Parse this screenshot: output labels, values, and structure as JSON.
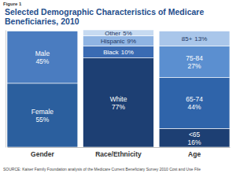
{
  "chart_data": {
    "type": "bar",
    "title": "Selected Demographic Characteristics of Medicare Beneficiaries, 2010",
    "annotations": [
      "Figure 1",
      "SOURCE: Kaiser Family Foundation analysis of the Medicare Current Beneficiary Survey 2010 Cost and Use File"
    ],
    "categories": [
      "Gender",
      "Race/Ethnicity",
      "Age"
    ],
    "stacked": true,
    "data_labels": true,
    "tick_labels": "x",
    "ylim": [
      0,
      101
    ],
    "series": [
      {
        "name": "Female",
        "color": "#2b5f9e",
        "values": [
          55,
          null,
          null
        ],
        "value_labels": [
          "55%",
          null,
          null
        ]
      },
      {
        "name": "Male",
        "color": "#4a7cc0",
        "values": [
          45,
          null,
          null
        ],
        "value_labels": [
          "45%",
          null,
          null
        ]
      },
      {
        "name": "White",
        "color": "#1d3f73",
        "values": [
          null,
          77,
          null
        ],
        "value_labels": [
          null,
          "77%",
          null
        ]
      },
      {
        "name": "Black",
        "color": "#3a6bb3",
        "values": [
          null,
          10,
          null
        ],
        "value_labels": [
          null,
          "10%",
          null
        ]
      },
      {
        "name": "Hispanic",
        "color": "#8fb4e3",
        "values": [
          null,
          9,
          null
        ],
        "value_labels": [
          null,
          "9%",
          null
        ]
      },
      {
        "name": "Other",
        "color": "#c6daf1",
        "values": [
          null,
          5,
          null
        ],
        "value_labels": [
          null,
          "5%",
          null
        ]
      },
      {
        "name": "<65",
        "color": "#1d3f73",
        "values": [
          null,
          null,
          16
        ],
        "value_labels": [
          null,
          null,
          "16%"
        ]
      },
      {
        "name": "65-74",
        "color": "#2f64aa",
        "values": [
          null,
          null,
          44
        ],
        "value_labels": [
          null,
          null,
          "44%"
        ]
      },
      {
        "name": "75-84",
        "color": "#5b8fd0",
        "values": [
          null,
          null,
          27
        ],
        "value_labels": [
          null,
          null,
          "27%"
        ]
      },
      {
        "name": "85+",
        "color": "#a9c6ea",
        "values": [
          null,
          null,
          13
        ],
        "value_labels": [
          null,
          null,
          "13%"
        ]
      }
    ]
  }
}
